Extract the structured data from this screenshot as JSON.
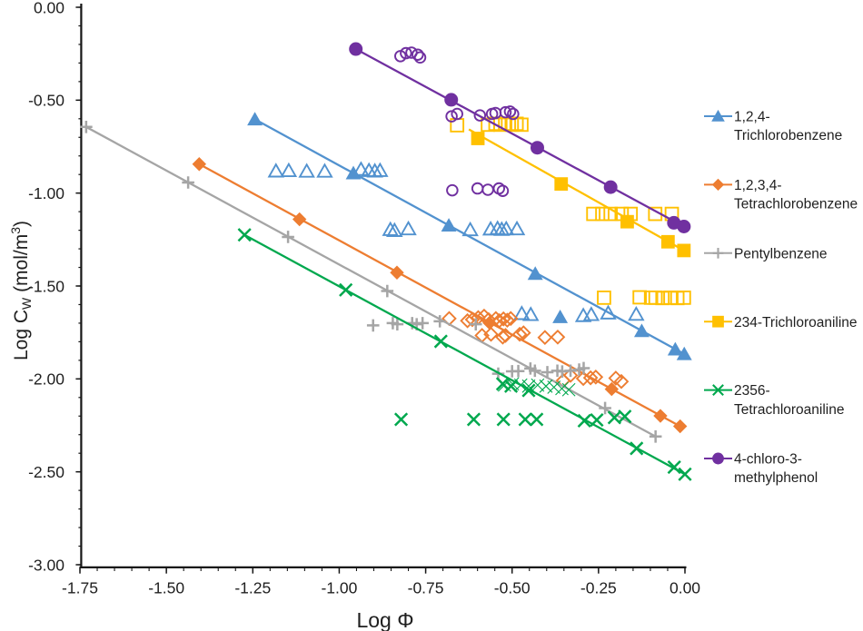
{
  "chart_data": {
    "type": "scatter",
    "title": "",
    "xlabel": "Log Φ",
    "ylabel": "Log CW (mol/m3)",
    "ylabel_parts": [
      {
        "t": "Log C",
        "style": "normal"
      },
      {
        "t": "W",
        "style": "sub"
      },
      {
        "t": " (mol/m",
        "style": "normal"
      },
      {
        "t": "3",
        "style": "sup"
      },
      {
        "t": ")",
        "style": "normal"
      }
    ],
    "xlim": [
      -1.75,
      0.0
    ],
    "ylim": [
      -3.0,
      0.0
    ],
    "x_tick_labels": [
      "-1.75",
      "-1.50",
      "-1.25",
      "-1.00",
      "-0.75",
      "-0.50",
      "-0.25",
      "0.00"
    ],
    "x_tick_values": [
      -1.75,
      -1.5,
      -1.25,
      -1.0,
      -0.75,
      -0.5,
      -0.25,
      0.0
    ],
    "y_tick_labels": [
      "0.00",
      "-0.50",
      "-1.00",
      "-1.50",
      "-2.00",
      "-2.50",
      "-3.00"
    ],
    "y_tick_values": [
      0.0,
      -0.5,
      -1.0,
      -1.5,
      -2.0,
      -2.5,
      -3.0
    ],
    "x_minor_step": 0.05,
    "y_minor_step": 0.1,
    "grid": false,
    "legend_position": "right",
    "axis_color": "#161616",
    "text_color": "#1f1f1f",
    "series": [
      {
        "name": "1,2,4-Trichlorobenzene",
        "legend_lines": [
          "1,2,4-",
          "Trichlorobenzene"
        ],
        "color": "#5292CF",
        "marker": "triangle",
        "fit_points": [
          [
            -1.244,
            -0.603
          ],
          [
            -0.959,
            -0.893
          ],
          [
            -0.683,
            -1.174
          ],
          [
            -0.433,
            -1.434
          ],
          [
            -0.125,
            -1.742
          ],
          [
            -0.028,
            -1.841
          ],
          [
            -0.002,
            -1.866
          ]
        ],
        "open_points": [
          [
            -1.183,
            -0.881
          ],
          [
            -1.146,
            -0.879
          ],
          [
            -1.094,
            -0.882
          ],
          [
            -1.042,
            -0.882
          ],
          [
            -0.937,
            -0.872
          ],
          [
            -0.914,
            -0.878
          ],
          [
            -0.897,
            -0.881
          ],
          [
            -0.882,
            -0.878
          ],
          [
            -0.852,
            -1.196
          ],
          [
            -0.84,
            -1.201
          ],
          [
            -0.8,
            -1.192
          ],
          [
            -0.621,
            -1.197
          ],
          [
            -0.562,
            -1.193
          ],
          [
            -0.542,
            -1.19
          ],
          [
            -0.53,
            -1.195
          ],
          [
            -0.517,
            -1.192
          ],
          [
            -0.486,
            -1.192
          ],
          [
            -0.472,
            -1.648
          ],
          [
            -0.446,
            -1.653
          ],
          [
            -0.294,
            -1.659
          ],
          [
            -0.271,
            -1.653
          ],
          [
            -0.222,
            -1.645
          ],
          [
            -0.141,
            -1.652
          ]
        ],
        "filled_points": [
          [
            -0.361,
            -1.667
          ]
        ]
      },
      {
        "name": "1,2,3,4-Tetrachlorobenzene",
        "legend_lines": [
          "1,2,3,4-",
          "Tetrachlorobenzene"
        ],
        "color": "#ED7D31",
        "marker": "diamond",
        "fit_points": [
          [
            -1.405,
            -0.844
          ],
          [
            -1.115,
            -1.141
          ],
          [
            -0.833,
            -1.428
          ],
          [
            -0.565,
            -1.699
          ],
          [
            -0.212,
            -2.055
          ],
          [
            -0.071,
            -2.199
          ],
          [
            -0.014,
            -2.255
          ]
        ],
        "open_points": [
          [
            -0.682,
            -1.675
          ],
          [
            -0.629,
            -1.687
          ],
          [
            -0.615,
            -1.681
          ],
          [
            -0.598,
            -1.67
          ],
          [
            -0.581,
            -1.662
          ],
          [
            -0.568,
            -1.681
          ],
          [
            -0.547,
            -1.675
          ],
          [
            -0.537,
            -1.687
          ],
          [
            -0.525,
            -1.677
          ],
          [
            -0.514,
            -1.684
          ],
          [
            -0.504,
            -1.675
          ],
          [
            -0.587,
            -1.766
          ],
          [
            -0.561,
            -1.76
          ],
          [
            -0.527,
            -1.775
          ],
          [
            -0.519,
            -1.766
          ],
          [
            -0.478,
            -1.76
          ],
          [
            -0.467,
            -1.752
          ],
          [
            -0.405,
            -1.777
          ],
          [
            -0.368,
            -1.775
          ],
          [
            -0.352,
            -2.009
          ],
          [
            -0.331,
            -1.981
          ],
          [
            -0.294,
            -1.998
          ],
          [
            -0.273,
            -1.994
          ],
          [
            -0.258,
            -1.99
          ],
          [
            -0.2,
            -1.996
          ],
          [
            -0.184,
            -2.014
          ]
        ],
        "filled_points": []
      },
      {
        "name": "Pentylbenzene",
        "legend_lines": [
          "Pentylbenzene"
        ],
        "color": "#A5A5A5",
        "marker": "plus",
        "fit_points": [
          [
            -1.732,
            -0.644
          ],
          [
            -1.437,
            -0.943
          ],
          [
            -1.148,
            -1.236
          ],
          [
            -0.861,
            -1.527
          ],
          [
            -0.231,
            -2.157
          ],
          [
            -0.085,
            -2.31
          ]
        ],
        "open_points": [
          [
            -0.902,
            -1.712
          ],
          [
            -0.845,
            -1.7
          ],
          [
            -0.832,
            -1.706
          ],
          [
            -0.789,
            -1.7
          ],
          [
            -0.776,
            -1.706
          ],
          [
            -0.759,
            -1.7
          ],
          [
            -0.709,
            -1.69
          ],
          [
            -0.605,
            -1.706
          ],
          [
            -0.54,
            -1.972
          ],
          [
            -0.5,
            -1.959
          ],
          [
            -0.482,
            -1.958
          ],
          [
            -0.447,
            -1.944
          ],
          [
            -0.434,
            -1.956
          ],
          [
            -0.398,
            -1.964
          ],
          [
            -0.369,
            -1.956
          ],
          [
            -0.355,
            -1.96
          ],
          [
            -0.331,
            -1.956
          ],
          [
            -0.306,
            -1.95
          ],
          [
            -0.293,
            -1.942
          ]
        ],
        "filled_points": []
      },
      {
        "name": "234-Trichloroaniline",
        "legend_lines": [
          "234-Trichloroaniline"
        ],
        "color": "#FFC000",
        "marker": "square",
        "line_start": [
          -0.625,
          -0.657
        ],
        "fit_points": [
          [
            -0.599,
            -0.706
          ],
          [
            -0.358,
            -0.951
          ],
          [
            -0.167,
            -1.154
          ],
          [
            -0.049,
            -1.262
          ],
          [
            -0.003,
            -1.309
          ]
        ],
        "open_points": [
          [
            -0.659,
            -0.635
          ],
          [
            -0.57,
            -0.632
          ],
          [
            -0.548,
            -0.627
          ],
          [
            -0.534,
            -0.632
          ],
          [
            -0.52,
            -0.627
          ],
          [
            -0.501,
            -0.632
          ],
          [
            -0.487,
            -0.627
          ],
          [
            -0.473,
            -0.632
          ],
          [
            -0.265,
            -1.112
          ],
          [
            -0.239,
            -1.112
          ],
          [
            -0.215,
            -1.112
          ],
          [
            -0.183,
            -1.112
          ],
          [
            -0.157,
            -1.112
          ],
          [
            -0.086,
            -1.112
          ],
          [
            -0.038,
            -1.112
          ],
          [
            -0.234,
            -1.563
          ],
          [
            -0.131,
            -1.561
          ],
          [
            -0.098,
            -1.563
          ],
          [
            -0.085,
            -1.563
          ],
          [
            -0.065,
            -1.565
          ],
          [
            -0.042,
            -1.563
          ],
          [
            -0.022,
            -1.565
          ],
          [
            -0.003,
            -1.563
          ]
        ],
        "filled_points": []
      },
      {
        "name": "2356-Tetrachloroaniline",
        "legend_lines": [
          "2356-",
          "Tetrachloroaniline"
        ],
        "color": "#00A84E",
        "marker": "x",
        "fit_points": [
          [
            -1.274,
            -1.225
          ],
          [
            -0.981,
            -1.521
          ],
          [
            -0.706,
            -1.798
          ],
          [
            -0.452,
            -2.062
          ],
          [
            -0.291,
            -2.225
          ],
          [
            -0.14,
            -2.374
          ],
          [
            -0.031,
            -2.475
          ],
          [
            0.0,
            -2.513
          ]
        ],
        "open_points": [
          [
            -0.821,
            -2.218
          ],
          [
            -0.611,
            -2.218
          ],
          [
            -0.525,
            -2.218
          ],
          [
            -0.462,
            -2.218
          ],
          [
            -0.429,
            -2.218
          ],
          [
            -0.255,
            -2.221
          ],
          [
            -0.204,
            -2.208
          ],
          [
            -0.174,
            -2.202
          ],
          [
            -0.527,
            -2.027
          ],
          [
            -0.503,
            -2.039
          ]
        ],
        "thin_points": [
          [
            -0.522,
            -2.033
          ],
          [
            -0.499,
            -2.027
          ],
          [
            -0.475,
            -2.033
          ],
          [
            -0.452,
            -2.039
          ],
          [
            -0.426,
            -2.033
          ],
          [
            -0.402,
            -2.039
          ],
          [
            -0.379,
            -2.045
          ],
          [
            -0.356,
            -2.052
          ],
          [
            -0.336,
            -2.058
          ]
        ],
        "filled_points": []
      },
      {
        "name": "4-chloro-3-methylphenol",
        "legend_lines": [
          "4-chloro-3-",
          "methylphenol"
        ],
        "color": "#7030A0",
        "marker": "circle",
        "fit_points": [
          [
            -0.952,
            -0.225
          ],
          [
            -0.676,
            -0.498
          ],
          [
            -0.427,
            -0.756
          ],
          [
            -0.215,
            -0.968
          ],
          [
            -0.032,
            -1.16
          ],
          [
            -0.003,
            -1.18
          ]
        ],
        "open_points": [
          [
            -0.823,
            -0.263
          ],
          [
            -0.807,
            -0.247
          ],
          [
            -0.791,
            -0.244
          ],
          [
            -0.773,
            -0.255
          ],
          [
            -0.766,
            -0.27
          ],
          [
            -0.675,
            -0.587
          ],
          [
            -0.659,
            -0.574
          ],
          [
            -0.593,
            -0.582
          ],
          [
            -0.558,
            -0.574
          ],
          [
            -0.548,
            -0.569
          ],
          [
            -0.519,
            -0.565
          ],
          [
            -0.506,
            -0.561
          ],
          [
            -0.497,
            -0.574
          ],
          [
            -0.673,
            -0.985
          ],
          [
            -0.6,
            -0.975
          ],
          [
            -0.57,
            -0.982
          ],
          [
            -0.538,
            -0.975
          ],
          [
            -0.527,
            -0.988
          ]
        ],
        "filled_points": []
      }
    ]
  }
}
